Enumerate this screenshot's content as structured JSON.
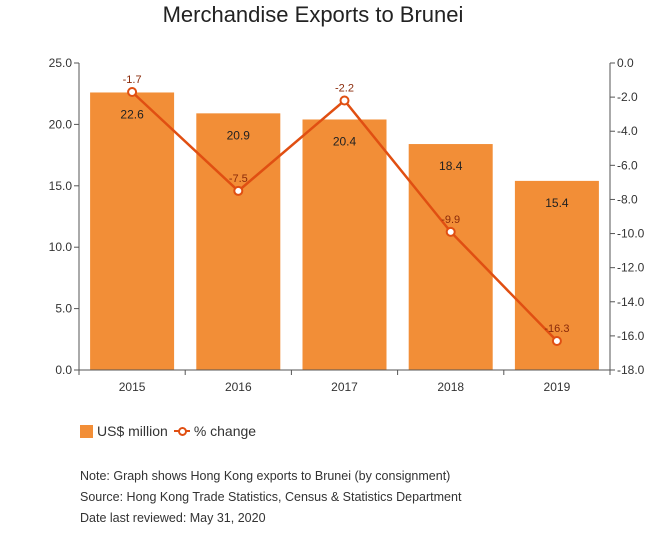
{
  "chart_data": {
    "type": "bar",
    "title": "Merchandise Exports to Brunei",
    "categories": [
      "2015",
      "2016",
      "2017",
      "2018",
      "2019"
    ],
    "series": [
      {
        "name": "US$ million",
        "type": "bar",
        "axis": "left",
        "values": [
          22.6,
          20.9,
          20.4,
          18.4,
          15.4
        ],
        "labels": [
          "22.6",
          "20.9",
          "20.4",
          "18.4",
          "15.4"
        ]
      },
      {
        "name": "% change",
        "type": "line",
        "axis": "right",
        "values": [
          -1.7,
          -7.5,
          -2.2,
          -9.9,
          -16.3
        ],
        "labels": [
          "-1.7",
          "-7.5",
          "-2.2",
          "-9.9",
          "-16.3"
        ]
      }
    ],
    "y_left": {
      "min": 0,
      "max": 25,
      "ticks": [
        "0.0",
        "5.0",
        "10.0",
        "15.0",
        "20.0",
        "25.0"
      ]
    },
    "y_right": {
      "min": -18,
      "max": 0,
      "ticks": [
        "0.0",
        "-2.0",
        "-4.0",
        "-6.0",
        "-8.0",
        "-10.0",
        "-12.0",
        "-14.0",
        "-16.0",
        "-18.0"
      ]
    },
    "grid": false,
    "legend_position": "bottom-left"
  },
  "colors": {
    "bar": "#f28e37",
    "line": "#e04f12",
    "axis": "#555555",
    "label": "#222222"
  },
  "legend": {
    "bar_label": "US$ million",
    "line_label": "% change"
  },
  "notes": {
    "note": "Note: Graph shows Hong Kong exports to Brunei (by consignment)",
    "source": "Source: Hong Kong Trade Statistics, Census & Statistics Department",
    "reviewed": "Date last reviewed: May 31, 2020"
  }
}
